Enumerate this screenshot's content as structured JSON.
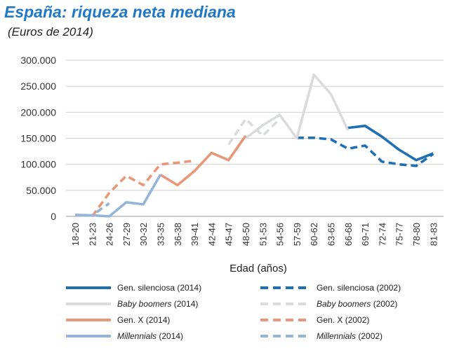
{
  "title": "España: riqueza neta mediana",
  "subtitle": "(Euros de 2014)",
  "colors": {
    "gen_silenciosa": "#1f6fb4",
    "baby_boomers": "#d9dbdc",
    "gen_x": "#e8987a",
    "millennials": "#94b4d8",
    "grid": "#cfcfcf",
    "title": "#1f78c8"
  },
  "chart_data": {
    "type": "line",
    "title": "España: riqueza neta mediana",
    "subtitle": "(Euros de 2014)",
    "xlabel": "Edad (años)",
    "ylabel": "",
    "ylim": [
      0,
      300000
    ],
    "yticks": [
      0,
      50000,
      100000,
      150000,
      200000,
      250000,
      300000
    ],
    "ytick_labels": [
      "0",
      "50.000",
      "100.000",
      "150.000",
      "200.000",
      "250.000",
      "300.000"
    ],
    "grid": "horizontal",
    "legend_position": "bottom",
    "categories": [
      "18-20",
      "21-23",
      "24-26",
      "27-29",
      "30-32",
      "33-35",
      "36-38",
      "39-41",
      "42-44",
      "45-47",
      "48-50",
      "51-53",
      "54-56",
      "57-59",
      "60-62",
      "63-65",
      "66-68",
      "69-71",
      "72-74",
      "75-77",
      "78-80",
      "81-83"
    ],
    "series": [
      {
        "name": "Gen. silenciosa (2014)",
        "label_main": "Gen. silenciosa",
        "label_suffix": " (2014)",
        "italic": false,
        "color_key": "gen_silenciosa",
        "dashed": false,
        "values": [
          null,
          null,
          null,
          null,
          null,
          null,
          null,
          null,
          null,
          null,
          null,
          null,
          null,
          null,
          null,
          null,
          170000,
          174000,
          153000,
          128000,
          108000,
          121000
        ]
      },
      {
        "name": "Gen. silenciosa (2002)",
        "label_main": "Gen. silenciosa",
        "label_suffix": " (2002)",
        "italic": false,
        "color_key": "gen_silenciosa",
        "dashed": true,
        "values": [
          null,
          null,
          null,
          null,
          null,
          null,
          null,
          null,
          null,
          null,
          null,
          null,
          null,
          151000,
          151000,
          148000,
          130000,
          136000,
          105000,
          100000,
          97000,
          120000
        ]
      },
      {
        "name": "Baby boomers (2014)",
        "label_main": "Baby boomers",
        "label_suffix": " (2014)",
        "italic": true,
        "color_key": "baby_boomers",
        "dashed": false,
        "values": [
          null,
          null,
          null,
          null,
          null,
          null,
          null,
          null,
          null,
          null,
          150000,
          175000,
          195000,
          150000,
          272000,
          235000,
          165000,
          null,
          null,
          null,
          null,
          null
        ]
      },
      {
        "name": "Baby boomers (2002)",
        "label_main": "Baby boomers",
        "label_suffix": " (2002)",
        "italic": true,
        "color_key": "baby_boomers",
        "dashed": true,
        "values": [
          null,
          null,
          null,
          null,
          null,
          null,
          null,
          null,
          null,
          138000,
          187000,
          155000,
          187000,
          null,
          null,
          null,
          null,
          null,
          null,
          null,
          null,
          null
        ]
      },
      {
        "name": "Gen. X (2014)",
        "label_main": "Gen. X",
        "label_suffix": " (2014)",
        "italic": false,
        "color_key": "gen_x",
        "dashed": false,
        "values": [
          null,
          null,
          null,
          null,
          null,
          80000,
          60000,
          87000,
          122000,
          108000,
          155000,
          null,
          null,
          null,
          null,
          null,
          null,
          null,
          null,
          null,
          null,
          null
        ]
      },
      {
        "name": "Gen. X (2002)",
        "label_main": "Gen. X",
        "label_suffix": " (2002)",
        "italic": false,
        "color_key": "gen_x",
        "dashed": true,
        "values": [
          null,
          0,
          45000,
          78000,
          60000,
          100000,
          103000,
          107000,
          null,
          null,
          null,
          null,
          null,
          null,
          null,
          null,
          null,
          null,
          null,
          null,
          null,
          null
        ]
      },
      {
        "name": "Millennials (2014)",
        "label_main": "Millennials",
        "label_suffix": " (2014)",
        "italic": true,
        "color_key": "millennials",
        "dashed": false,
        "values": [
          3000,
          2000,
          0,
          27000,
          23000,
          80000,
          null,
          null,
          null,
          null,
          null,
          null,
          null,
          null,
          null,
          null,
          null,
          null,
          null,
          null,
          null,
          null
        ]
      },
      {
        "name": "Millennials (2002)",
        "label_main": "Millennials",
        "label_suffix": " (2002)",
        "italic": true,
        "color_key": "millennials",
        "dashed": true,
        "values": [
          2000,
          2000,
          25000,
          null,
          null,
          null,
          null,
          null,
          null,
          null,
          null,
          null,
          null,
          null,
          null,
          null,
          null,
          null,
          null,
          null,
          null,
          null
        ]
      }
    ]
  }
}
